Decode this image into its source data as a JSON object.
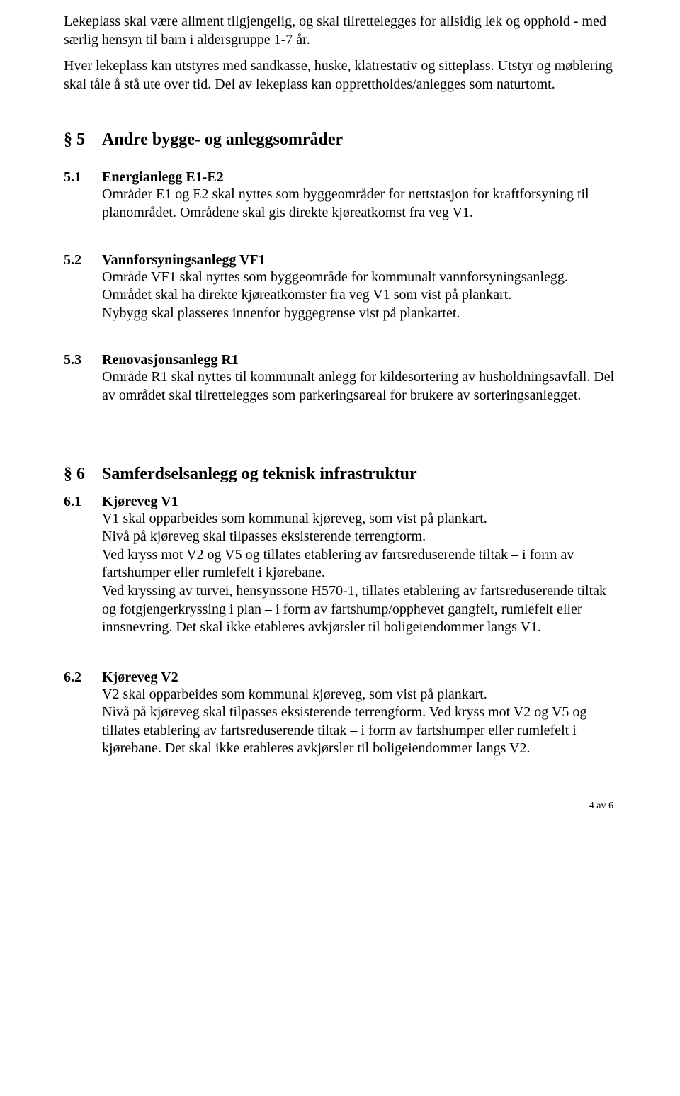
{
  "intro": {
    "p1": "Lekeplass skal være allment tilgjengelig, og skal tilrettelegges for allsidig lek og opphold - med særlig hensyn til barn i aldersgruppe 1-7 år.",
    "p2": "Hver lekeplass kan utstyres med sandkasse, huske, klatrestativ og sitteplass. Utstyr og møblering skal tåle å stå ute over tid. Del av lekeplass kan opprettholdes/anlegges som naturtomt."
  },
  "s5": {
    "num": "§ 5",
    "title": "Andre bygge- og anleggsområder",
    "s1": {
      "num": "5.1",
      "title": "Energianlegg E1-E2",
      "body": "Områder E1 og E2 skal nyttes som byggeområder for nettstasjon for kraftforsyning til planområdet. Områdene skal gis direkte kjøreatkomst fra veg V1."
    },
    "s2": {
      "num": "5.2",
      "title": "Vannforsyningsanlegg VF1",
      "body": "Område VF1 skal nyttes som byggeområde for kommunalt vannforsyningsanlegg. Området skal ha direkte kjøreatkomster fra veg V1 som vist på plankart.\nNybygg skal plasseres innenfor byggegrense vist på plankartet."
    },
    "s3": {
      "num": "5.3",
      "title": "Renovasjonsanlegg R1",
      "body": "Område R1 skal nyttes til kommunalt anlegg for kildesortering av husholdningsavfall. Del av området skal tilrettelegges som parkeringsareal for brukere av sorteringsanlegget."
    }
  },
  "s6": {
    "num": "§ 6",
    "title": "Samferdselsanlegg og teknisk infrastruktur",
    "s1": {
      "num": "6.1",
      "title": "Kjøreveg V1",
      "body": "V1 skal opparbeides som kommunal kjøreveg, som vist på plankart.\nNivå på kjøreveg skal tilpasses eksisterende terrengform.\nVed kryss mot V2 og V5 og tillates etablering av fartsreduserende tiltak – i form av fartshumper eller rumlefelt i kjørebane.\nVed kryssing av turvei, hensynssone H570-1, tillates etablering av fartsreduserende tiltak og fotgjengerkryssing i plan – i form av fartshump/opphevet gangfelt, rumlefelt eller innsnevring. Det skal ikke etableres avkjørsler til boligeiendommer langs V1."
    },
    "s2": {
      "num": "6.2",
      "title": "Kjøreveg V2",
      "body": "V2 skal opparbeides som kommunal kjøreveg, som vist på plankart.\nNivå på kjøreveg skal tilpasses eksisterende terrengform. Ved kryss mot V2 og V5 og tillates etablering av fartsreduserende tiltak – i form av fartshumper eller rumlefelt i kjørebane. Det skal ikke etableres avkjørsler til boligeiendommer langs V2."
    }
  },
  "footer": "4 av 6"
}
